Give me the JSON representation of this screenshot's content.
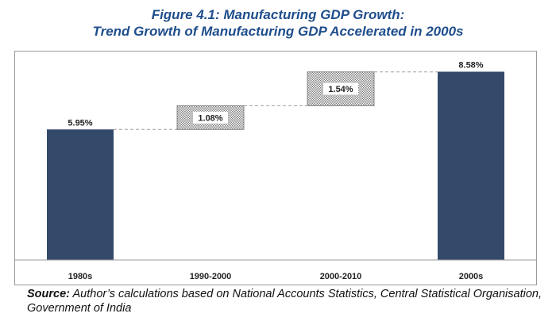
{
  "figure": {
    "title_line1": "Figure 4.1: Manufacturing GDP Growth:",
    "title_line2": "Trend Growth of Manufacturing GDP Accelerated in 2000s"
  },
  "source": {
    "label": "Source:",
    "text": " Author’s calculations based on National Accounts Statistics, Central Statistical Organisation, Government of India"
  },
  "colors": {
    "total_bar": "#344a6b",
    "increment_pattern": "#7f7f7f",
    "connector": "#a0a0a0",
    "title": "#1f4e8c"
  },
  "chart_data": {
    "type": "bar",
    "subtype": "waterfall",
    "categories": [
      "1980s",
      "1990-2000",
      "2000-2010",
      "2000s"
    ],
    "values": [
      5.95,
      1.08,
      1.54,
      8.58
    ],
    "value_labels": [
      "5.95%",
      "1.08%",
      "1.54%",
      "8.58%"
    ],
    "kinds": [
      "total",
      "increment",
      "increment",
      "total"
    ],
    "ylim": [
      0,
      9.5
    ],
    "grid": false,
    "legend": "none"
  }
}
